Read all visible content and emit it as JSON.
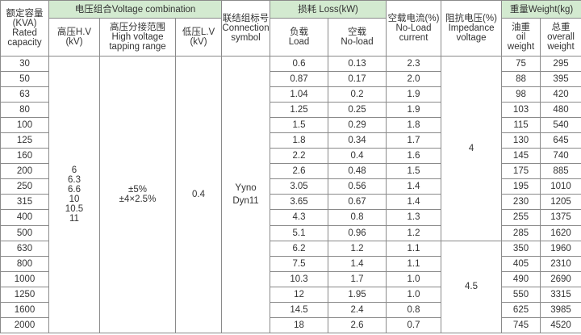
{
  "headers": {
    "rated_capacity": [
      "额定容量",
      "(KVA)",
      "Rated",
      "capacity"
    ],
    "voltage_combination": "电压组合Voltage combination",
    "hv": [
      "高压H.V",
      "(kV)"
    ],
    "tapping": [
      "高压分接范围",
      "High voltage",
      "tapping range"
    ],
    "lv": [
      "低压L.V",
      "(kV)"
    ],
    "connection": [
      "联结组标号",
      "Connection",
      "symbol"
    ],
    "loss": "损耗 Loss(kW)",
    "load": [
      "负载",
      "Load"
    ],
    "noload": [
      "空载",
      "No-load"
    ],
    "noload_current": [
      "空载电流(%)",
      "No-Load",
      "current"
    ],
    "impedance": [
      "阻抗电压(%)",
      "Impedance",
      "voltage"
    ],
    "weight": "重量Weight(kg)",
    "oil_weight": [
      "油重",
      "oil",
      "weight"
    ],
    "overall_weight": [
      "总重",
      "overall",
      "weight"
    ]
  },
  "merged": {
    "hv_values": [
      "6",
      "6.3",
      "6.6",
      "10",
      "10.5",
      "11"
    ],
    "tapping_values": [
      "±5%",
      "±4×2.5%"
    ],
    "lv_value": "0.4",
    "connection_values": [
      "Yyno",
      "Dyn11"
    ],
    "impedance_a": "4",
    "impedance_b": "4.5"
  },
  "rows": [
    {
      "capacity": "30",
      "load": "0.6",
      "noload": "0.13",
      "current": "2.3",
      "oil": "75",
      "overall": "295"
    },
    {
      "capacity": "50",
      "load": "0.87",
      "noload": "0.17",
      "current": "2.0",
      "oil": "88",
      "overall": "395"
    },
    {
      "capacity": "63",
      "load": "1.04",
      "noload": "0.2",
      "current": "1.9",
      "oil": "98",
      "overall": "420"
    },
    {
      "capacity": "80",
      "load": "1.25",
      "noload": "0.25",
      "current": "1.9",
      "oil": "103",
      "overall": "480"
    },
    {
      "capacity": "100",
      "load": "1.5",
      "noload": "0.29",
      "current": "1.8",
      "oil": "115",
      "overall": "540"
    },
    {
      "capacity": "125",
      "load": "1.8",
      "noload": "0.34",
      "current": "1.7",
      "oil": "130",
      "overall": "645"
    },
    {
      "capacity": "160",
      "load": "2.2",
      "noload": "0.4",
      "current": "1.6",
      "oil": "145",
      "overall": "740"
    },
    {
      "capacity": "200",
      "load": "2.6",
      "noload": "0.48",
      "current": "1.5",
      "oil": "175",
      "overall": "885"
    },
    {
      "capacity": "250",
      "load": "3.05",
      "noload": "0.56",
      "current": "1.4",
      "oil": "195",
      "overall": "1010"
    },
    {
      "capacity": "315",
      "load": "3.65",
      "noload": "0.67",
      "current": "1.4",
      "oil": "230",
      "overall": "1205"
    },
    {
      "capacity": "400",
      "load": "4.3",
      "noload": "0.8",
      "current": "1.3",
      "oil": "255",
      "overall": "1375"
    },
    {
      "capacity": "500",
      "load": "5.1",
      "noload": "0.96",
      "current": "1.2",
      "oil": "285",
      "overall": "1620"
    },
    {
      "capacity": "630",
      "load": "6.2",
      "noload": "1.2",
      "current": "1.1",
      "oil": "350",
      "overall": "1960"
    },
    {
      "capacity": "800",
      "load": "7.5",
      "noload": "1.4",
      "current": "1.1",
      "oil": "405",
      "overall": "2310"
    },
    {
      "capacity": "1000",
      "load": "10.3",
      "noload": "1.7",
      "current": "1.0",
      "oil": "490",
      "overall": "2690"
    },
    {
      "capacity": "1250",
      "load": "12",
      "noload": "1.95",
      "current": "1.0",
      "oil": "550",
      "overall": "3315"
    },
    {
      "capacity": "1600",
      "load": "14.5",
      "noload": "2.4",
      "current": "0.8",
      "oil": "625",
      "overall": "3985"
    },
    {
      "capacity": "2000",
      "load": "18",
      "noload": "2.6",
      "current": "0.7",
      "oil": "745",
      "overall": "4520"
    }
  ]
}
